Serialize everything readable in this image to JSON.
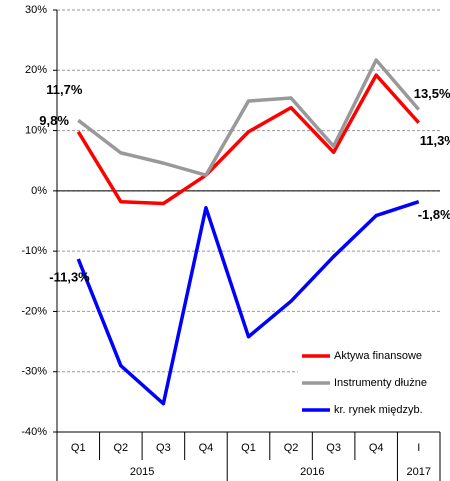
{
  "chart_data": {
    "type": "line",
    "categories": [
      "Q1",
      "Q2",
      "Q3",
      "Q4",
      "Q1",
      "Q2",
      "Q3",
      "Q4",
      "I"
    ],
    "category_groups": [
      {
        "label": "2015",
        "count": 4
      },
      {
        "label": "2016",
        "count": 4
      },
      {
        "label": "2017",
        "count": 1
      }
    ],
    "series": [
      {
        "name": "Aktywa finansowe",
        "color": "#ff0000",
        "values": [
          9.8,
          -1.8,
          -2.1,
          2.6,
          9.8,
          13.8,
          6.4,
          19.2,
          11.3
        ],
        "value_labels": [
          "9,8%",
          null,
          null,
          null,
          null,
          null,
          null,
          null,
          "11,3%"
        ]
      },
      {
        "name": "Instrumenty dłużne",
        "color": "#999999",
        "values": [
          11.7,
          6.3,
          4.6,
          2.6,
          14.9,
          15.4,
          7.4,
          21.7,
          13.5
        ],
        "value_labels": [
          "11,7%",
          null,
          null,
          null,
          null,
          null,
          null,
          null,
          "13,5%"
        ]
      },
      {
        "name": "kr. rynek międzyb.",
        "color": "#0000ff",
        "values": [
          -11.3,
          -29.0,
          -35.3,
          -2.8,
          -24.2,
          -18.3,
          -10.9,
          -4.1,
          -1.8
        ],
        "value_labels": [
          "-11,3%",
          null,
          null,
          null,
          null,
          null,
          null,
          null,
          "-1,8%"
        ]
      }
    ],
    "ylim": [
      -40,
      30
    ],
    "yticks": [
      {
        "value": -40,
        "label": "-40%"
      },
      {
        "value": -30,
        "label": "-30%"
      },
      {
        "value": -20,
        "label": "-20%"
      },
      {
        "value": -10,
        "label": "-10%"
      },
      {
        "value": 0,
        "label": "0%"
      },
      {
        "value": 10,
        "label": "10%"
      },
      {
        "value": 20,
        "label": "20%"
      },
      {
        "value": 30,
        "label": "30%"
      }
    ],
    "grid": true,
    "legend": "lower right"
  }
}
